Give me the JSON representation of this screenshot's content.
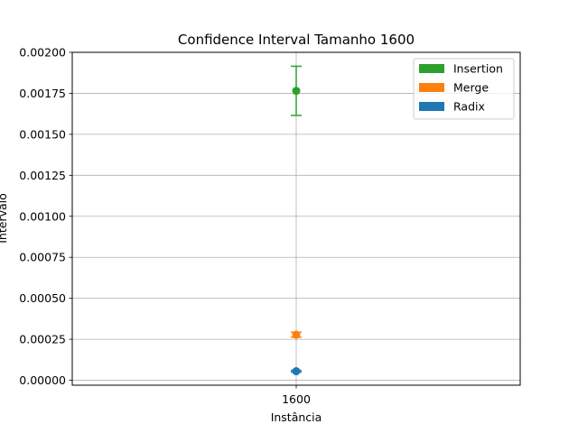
{
  "chart_data": {
    "type": "scatter",
    "title": "Confidence Interval Tamanho 1600",
    "xlabel": "Instância",
    "ylabel": "Intervalo",
    "categories": [
      "1600"
    ],
    "ylim": [
      -3e-05,
      0.002
    ],
    "yticks": [
      "0.00000",
      "0.00025",
      "0.00050",
      "0.00075",
      "0.00100",
      "0.00125",
      "0.00150",
      "0.00175",
      "0.00200"
    ],
    "grid": true,
    "legend_position": "top-right",
    "series": [
      {
        "name": "Insertion",
        "color": "#2ca02c",
        "mean": 0.001765,
        "lower": 0.001615,
        "upper": 0.001915
      },
      {
        "name": "Merge",
        "color": "#ff7f0e",
        "mean": 0.000278,
        "lower": 0.000263,
        "upper": 0.000293
      },
      {
        "name": "Radix",
        "color": "#1f77b4",
        "mean": 5.5e-05,
        "lower": 5e-05,
        "upper": 6e-05
      }
    ]
  }
}
